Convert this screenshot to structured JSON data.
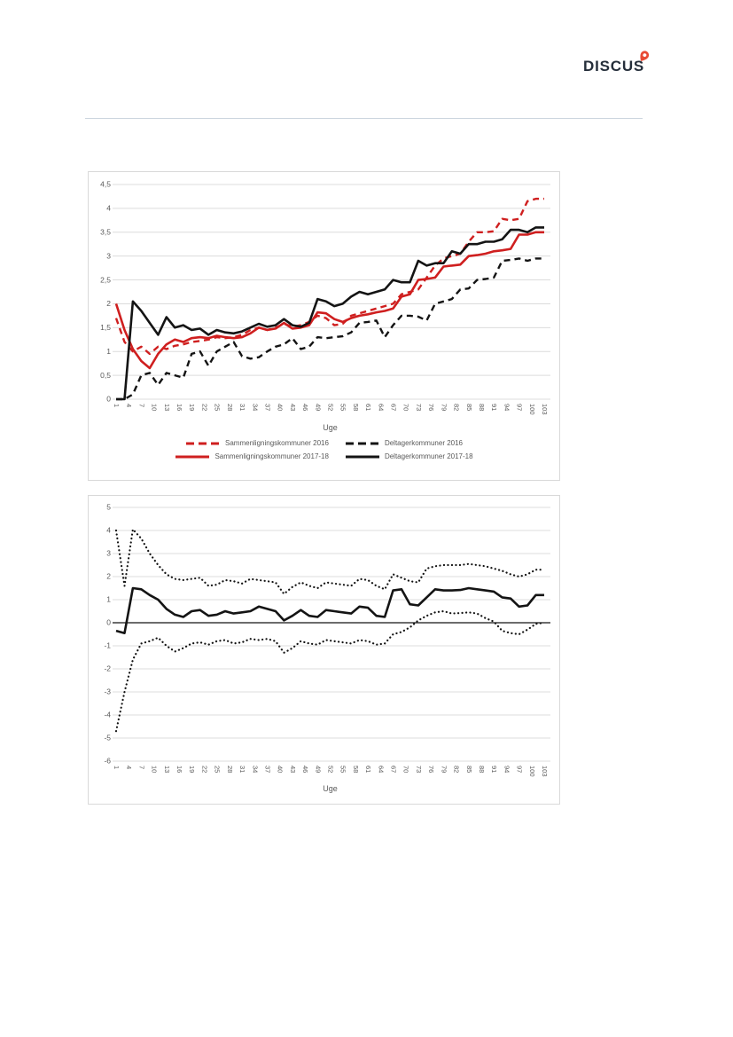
{
  "page": {
    "logo_text": "DISCUS",
    "logo_color": "#252e3a",
    "pin_color": "#e84b35",
    "divider_color": "#ccd5de"
  },
  "chart_data": [
    {
      "type": "line",
      "title": "",
      "xlabel": "Uge",
      "ylabel": "",
      "ylim": [
        0,
        4.5
      ],
      "y_tick_labels": [
        "4,5",
        "4",
        "3,5",
        "3",
        "2,5",
        "2",
        "1,5",
        "1",
        "0,5",
        "0"
      ],
      "x_max": 103,
      "x_ticks": [
        1,
        4,
        7,
        10,
        13,
        16,
        19,
        22,
        25,
        28,
        31,
        34,
        37,
        40,
        43,
        46,
        49,
        52,
        55,
        58,
        61,
        64,
        67,
        70,
        73,
        76,
        79,
        82,
        85,
        88,
        91,
        94,
        97,
        100,
        103
      ],
      "grid": true,
      "legend_position": "bottom",
      "x": [
        1,
        3,
        5,
        7,
        9,
        11,
        13,
        15,
        17,
        19,
        21,
        23,
        25,
        27,
        29,
        31,
        33,
        35,
        37,
        39,
        41,
        43,
        45,
        47,
        49,
        51,
        53,
        55,
        57,
        59,
        61,
        63,
        65,
        67,
        69,
        71,
        73,
        75,
        77,
        79,
        81,
        83,
        85,
        87,
        89,
        91,
        93,
        95,
        97,
        99,
        101,
        103
      ],
      "series": [
        {
          "name": "Sammenligningskommuner 2016",
          "color": "#cf1f1f",
          "style": "dashed",
          "values": [
            1.7,
            1.2,
            1.0,
            1.1,
            0.95,
            1.1,
            1.05,
            1.12,
            1.15,
            1.2,
            1.22,
            1.25,
            1.3,
            1.28,
            1.3,
            1.35,
            1.45,
            1.5,
            1.45,
            1.5,
            1.58,
            1.52,
            1.55,
            1.62,
            1.75,
            1.7,
            1.55,
            1.58,
            1.75,
            1.8,
            1.85,
            1.9,
            1.95,
            2.0,
            2.2,
            2.25,
            2.3,
            2.55,
            2.8,
            2.95,
            3.0,
            3.05,
            3.3,
            3.5,
            3.5,
            3.52,
            3.78,
            3.75,
            3.78,
            4.15,
            4.2,
            4.2
          ]
        },
        {
          "name": "Deltagerkommuner 2016",
          "color": "#141414",
          "style": "dashed",
          "values": [
            0,
            0,
            0.1,
            0.5,
            0.55,
            0.3,
            0.55,
            0.5,
            0.45,
            0.95,
            1.0,
            0.7,
            1.0,
            1.1,
            1.2,
            0.9,
            0.85,
            0.88,
            1.0,
            1.1,
            1.15,
            1.28,
            1.05,
            1.1,
            1.3,
            1.28,
            1.3,
            1.32,
            1.4,
            1.6,
            1.62,
            1.65,
            1.3,
            1.55,
            1.75,
            1.75,
            1.73,
            1.65,
            2.0,
            2.05,
            2.1,
            2.3,
            2.32,
            2.5,
            2.52,
            2.55,
            2.9,
            2.92,
            2.95,
            2.9,
            2.95,
            2.95
          ]
        },
        {
          "name": "Sammenligningskommuner 2017-18",
          "color": "#cf1f1f",
          "style": "solid",
          "values": [
            2.0,
            1.45,
            1.05,
            0.8,
            0.65,
            0.95,
            1.15,
            1.25,
            1.2,
            1.28,
            1.3,
            1.28,
            1.33,
            1.3,
            1.28,
            1.3,
            1.38,
            1.5,
            1.45,
            1.48,
            1.6,
            1.48,
            1.5,
            1.55,
            1.82,
            1.8,
            1.68,
            1.62,
            1.7,
            1.75,
            1.78,
            1.82,
            1.85,
            1.9,
            2.15,
            2.2,
            2.5,
            2.52,
            2.55,
            2.78,
            2.8,
            2.82,
            3.0,
            3.02,
            3.05,
            3.1,
            3.12,
            3.15,
            3.45,
            3.45,
            3.5,
            3.5
          ]
        },
        {
          "name": "Deltagerkommuner 2017-18",
          "color": "#141414",
          "style": "solid",
          "values": [
            0,
            0,
            2.05,
            1.85,
            1.6,
            1.35,
            1.72,
            1.5,
            1.55,
            1.45,
            1.48,
            1.35,
            1.45,
            1.4,
            1.38,
            1.42,
            1.5,
            1.58,
            1.52,
            1.55,
            1.68,
            1.55,
            1.52,
            1.6,
            2.1,
            2.05,
            1.95,
            2.0,
            2.15,
            2.25,
            2.2,
            2.25,
            2.3,
            2.5,
            2.45,
            2.45,
            2.9,
            2.8,
            2.85,
            2.85,
            3.1,
            3.05,
            3.25,
            3.25,
            3.3,
            3.3,
            3.35,
            3.55,
            3.55,
            3.5,
            3.6,
            3.6
          ]
        }
      ]
    },
    {
      "type": "line",
      "title": "",
      "xlabel": "Uge",
      "ylabel": "",
      "ylim": [
        -6,
        5
      ],
      "y_tick_labels": [
        "5",
        "4",
        "3",
        "2",
        "1",
        "0",
        "-1",
        "-2",
        "-3",
        "-4",
        "-5",
        "-6"
      ],
      "x_max": 103,
      "x_ticks": [
        1,
        4,
        7,
        10,
        13,
        16,
        19,
        22,
        25,
        28,
        31,
        34,
        37,
        40,
        43,
        46,
        49,
        52,
        55,
        58,
        61,
        64,
        67,
        70,
        73,
        76,
        79,
        82,
        85,
        88,
        91,
        94,
        97,
        100,
        103
      ],
      "grid": true,
      "zero_line": true,
      "legend_position": "none",
      "x": [
        1,
        3,
        5,
        7,
        9,
        11,
        13,
        15,
        17,
        19,
        21,
        23,
        25,
        27,
        29,
        31,
        33,
        35,
        37,
        39,
        41,
        43,
        45,
        47,
        49,
        51,
        53,
        55,
        57,
        59,
        61,
        63,
        65,
        67,
        69,
        71,
        73,
        75,
        77,
        79,
        81,
        83,
        85,
        87,
        89,
        91,
        93,
        95,
        97,
        99,
        101,
        103
      ],
      "series": [
        {
          "name": "upper-confidence-band",
          "color": "#141414",
          "style": "dotted",
          "values": [
            4.0,
            1.6,
            4.05,
            3.65,
            3.0,
            2.5,
            2.1,
            1.9,
            1.85,
            1.9,
            1.95,
            1.6,
            1.65,
            1.85,
            1.8,
            1.7,
            1.9,
            1.85,
            1.8,
            1.75,
            1.25,
            1.55,
            1.75,
            1.6,
            1.5,
            1.75,
            1.7,
            1.65,
            1.6,
            1.9,
            1.85,
            1.6,
            1.45,
            2.1,
            1.95,
            1.8,
            1.75,
            2.35,
            2.45,
            2.5,
            2.5,
            2.5,
            2.55,
            2.5,
            2.45,
            2.35,
            2.25,
            2.1,
            2.0,
            2.1,
            2.3,
            2.3
          ]
        },
        {
          "name": "lower-confidence-band",
          "color": "#141414",
          "style": "dotted",
          "values": [
            -4.7,
            -3.0,
            -1.6,
            -0.9,
            -0.8,
            -0.65,
            -1.0,
            -1.25,
            -1.1,
            -0.9,
            -0.85,
            -0.95,
            -0.8,
            -0.75,
            -0.9,
            -0.85,
            -0.7,
            -0.75,
            -0.7,
            -0.8,
            -1.3,
            -1.1,
            -0.8,
            -0.9,
            -0.95,
            -0.75,
            -0.8,
            -0.85,
            -0.9,
            -0.75,
            -0.8,
            -0.95,
            -0.9,
            -0.5,
            -0.4,
            -0.2,
            0.1,
            0.3,
            0.45,
            0.5,
            0.4,
            0.42,
            0.45,
            0.4,
            0.2,
            0.05,
            -0.35,
            -0.45,
            -0.5,
            -0.3,
            -0.05,
            0.0
          ]
        },
        {
          "name": "effect-difference",
          "color": "#141414",
          "style": "solid",
          "values": [
            -0.35,
            -0.45,
            1.5,
            1.45,
            1.2,
            1.0,
            0.6,
            0.35,
            0.25,
            0.5,
            0.55,
            0.3,
            0.35,
            0.5,
            0.4,
            0.45,
            0.5,
            0.7,
            0.6,
            0.5,
            0.1,
            0.3,
            0.55,
            0.3,
            0.25,
            0.55,
            0.5,
            0.45,
            0.4,
            0.7,
            0.65,
            0.3,
            0.25,
            1.4,
            1.45,
            0.8,
            0.75,
            1.1,
            1.45,
            1.4,
            1.4,
            1.42,
            1.5,
            1.45,
            1.4,
            1.35,
            1.1,
            1.05,
            0.7,
            0.75,
            1.2,
            1.2
          ]
        }
      ]
    }
  ]
}
